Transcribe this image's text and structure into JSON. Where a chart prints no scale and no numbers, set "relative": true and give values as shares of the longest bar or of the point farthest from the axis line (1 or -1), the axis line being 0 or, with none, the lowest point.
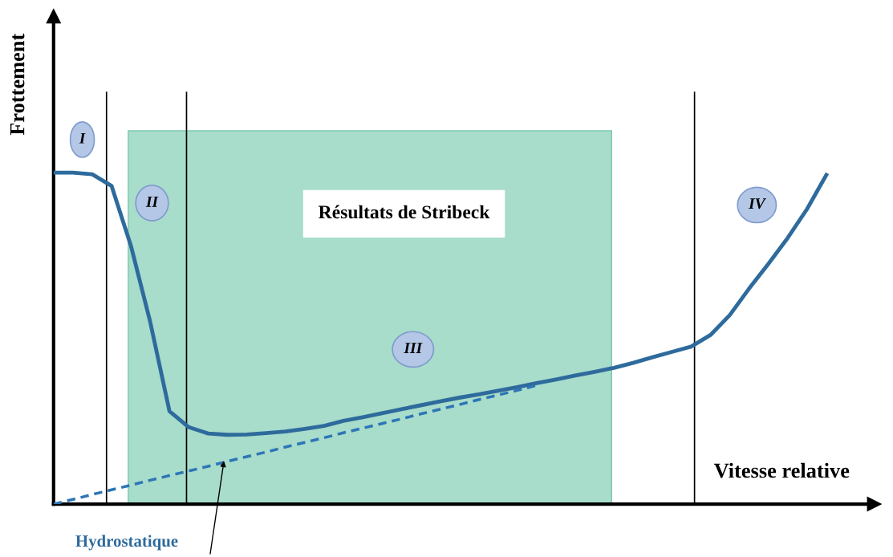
{
  "chart_data": {
    "type": "line",
    "relative": true,
    "xlabel": "Vitesse relative",
    "ylabel": "Frottement",
    "categories": [
      null,
      null,
      null,
      null,
      null,
      null,
      null,
      null,
      null,
      null,
      null,
      null,
      null,
      null,
      null,
      null,
      null,
      null,
      null,
      null,
      null,
      null,
      null,
      null,
      null,
      null,
      null,
      null,
      null,
      null,
      null,
      null,
      null,
      null,
      null,
      null,
      null,
      null,
      null,
      null,
      null
    ],
    "series": [
      {
        "color": "#2e6b9c",
        "line_style": "solid",
        "values": [
          1.0,
          1.0,
          0.995,
          0.96,
          0.78,
          0.55,
          0.28,
          0.232,
          0.213,
          0.209,
          0.21,
          0.214,
          0.219,
          0.227,
          0.236,
          0.251,
          0.262,
          0.274,
          0.286,
          0.298,
          0.31,
          0.321,
          0.331,
          0.342,
          0.353,
          0.365,
          0.376,
          0.388,
          0.399,
          0.411,
          0.426,
          0.443,
          0.459,
          0.475,
          0.51,
          0.57,
          0.65,
          0.725,
          0.803,
          0.89,
          0.993
        ]
      },
      {
        "color": "#2e75b6",
        "line_style": "dashed",
        "values": [
          0,
          0.014,
          0.029,
          0.043,
          0.057,
          0.072,
          0.086,
          0.1,
          0.114,
          0.129,
          0.143,
          0.157,
          0.172,
          0.186,
          0.2,
          0.215,
          0.229,
          0.243,
          0.257,
          0.272,
          0.286,
          0.3,
          0.315,
          0.329,
          0.343,
          0.358,
          null,
          null,
          null,
          null,
          null,
          null,
          null,
          null,
          null,
          null,
          null,
          null,
          null,
          null,
          null
        ]
      }
    ],
    "annotations": [
      "I",
      "II",
      "III",
      "IV",
      "Hydrostatique",
      "Résultats de Stribeck"
    ]
  }
}
